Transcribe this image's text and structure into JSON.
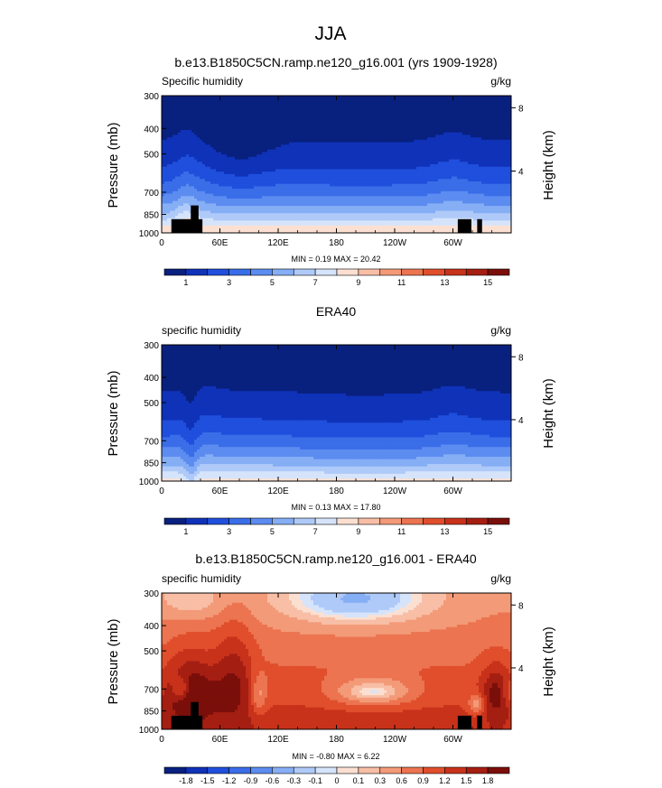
{
  "figure": {
    "title": "JJA"
  },
  "chart_data": [
    {
      "type": "heatmap",
      "title": "b.e13.B1850C5CN.ramp.ne120_g16.001 (yrs 1909-1928)",
      "left_label": "Specific humidity",
      "units": "g/kg",
      "ylabel": "Pressure (mb)",
      "ylabel_right": "Height (km)",
      "xticks": [
        "0",
        "60E",
        "120E",
        "180",
        "120W",
        "60W"
      ],
      "yticks": [
        "300",
        "400",
        "500",
        "700",
        "850",
        "1000"
      ],
      "height_ticks": [
        "8",
        "4"
      ],
      "stats": "MIN =   0.19  MAX =  20.42",
      "colorbar_labels": [
        "1",
        "3",
        "5",
        "7",
        "9",
        "11",
        "13",
        "15"
      ],
      "colorbar_colors": [
        "#08207e",
        "#0f32b8",
        "#1f4fdc",
        "#3a6de8",
        "#5c8cf0",
        "#86aef5",
        "#afcaf8",
        "#d6e4fb",
        "#fbe0d2",
        "#f8bea6",
        "#f39a78",
        "#ec7450",
        "#e04e2c",
        "#c8321a",
        "#a51e12",
        "#7a0f0a"
      ],
      "field": "model",
      "min": 0.19,
      "max": 20.42
    },
    {
      "type": "heatmap",
      "title": "ERA40",
      "left_label": "specific humidity",
      "units": "g/kg",
      "ylabel": "Pressure (mb)",
      "ylabel_right": "Height (km)",
      "xticks": [
        "0",
        "60E",
        "120E",
        "180",
        "120W",
        "60W"
      ],
      "yticks": [
        "300",
        "400",
        "500",
        "700",
        "850",
        "1000"
      ],
      "height_ticks": [
        "8",
        "4"
      ],
      "stats": "MIN =   0.13  MAX =  17.80",
      "colorbar_labels": [
        "1",
        "3",
        "5",
        "7",
        "9",
        "11",
        "13",
        "15"
      ],
      "colorbar_colors": [
        "#08207e",
        "#0f32b8",
        "#1f4fdc",
        "#3a6de8",
        "#5c8cf0",
        "#86aef5",
        "#afcaf8",
        "#d6e4fb",
        "#fbe0d2",
        "#f8bea6",
        "#f39a78",
        "#ec7450",
        "#e04e2c",
        "#c8321a",
        "#a51e12",
        "#7a0f0a"
      ],
      "field": "obs",
      "min": 0.13,
      "max": 17.8
    },
    {
      "type": "heatmap",
      "title": "b.e13.B1850C5CN.ramp.ne120_g16.001 - ERA40",
      "left_label": "specific humidity",
      "units": "g/kg",
      "ylabel": "Pressure (mb)",
      "ylabel_right": "Height (km)",
      "xticks": [
        "0",
        "60E",
        "120E",
        "180",
        "120W",
        "60W"
      ],
      "yticks": [
        "300",
        "400",
        "500",
        "700",
        "850",
        "1000"
      ],
      "height_ticks": [
        "8",
        "4"
      ],
      "stats": "MIN =  -0.80  MAX =   6.22",
      "colorbar_labels": [
        "-1.8",
        "-1.5",
        "-1.2",
        "-0.9",
        "-0.6",
        "-0.3",
        "-0.1",
        "0",
        "0.1",
        "0.3",
        "0.6",
        "0.9",
        "1.2",
        "1.5",
        "1.8"
      ],
      "colorbar_colors": [
        "#08207e",
        "#0f32b8",
        "#1f4fdc",
        "#3a6de8",
        "#5c8cf0",
        "#86aef5",
        "#afcaf8",
        "#d6e4fb",
        "#fbe0d2",
        "#f8bea6",
        "#f39a78",
        "#ec7450",
        "#e04e2c",
        "#c8321a",
        "#a51e12",
        "#7a0f0a"
      ],
      "field": "diff",
      "min": -0.8,
      "max": 6.22
    }
  ]
}
